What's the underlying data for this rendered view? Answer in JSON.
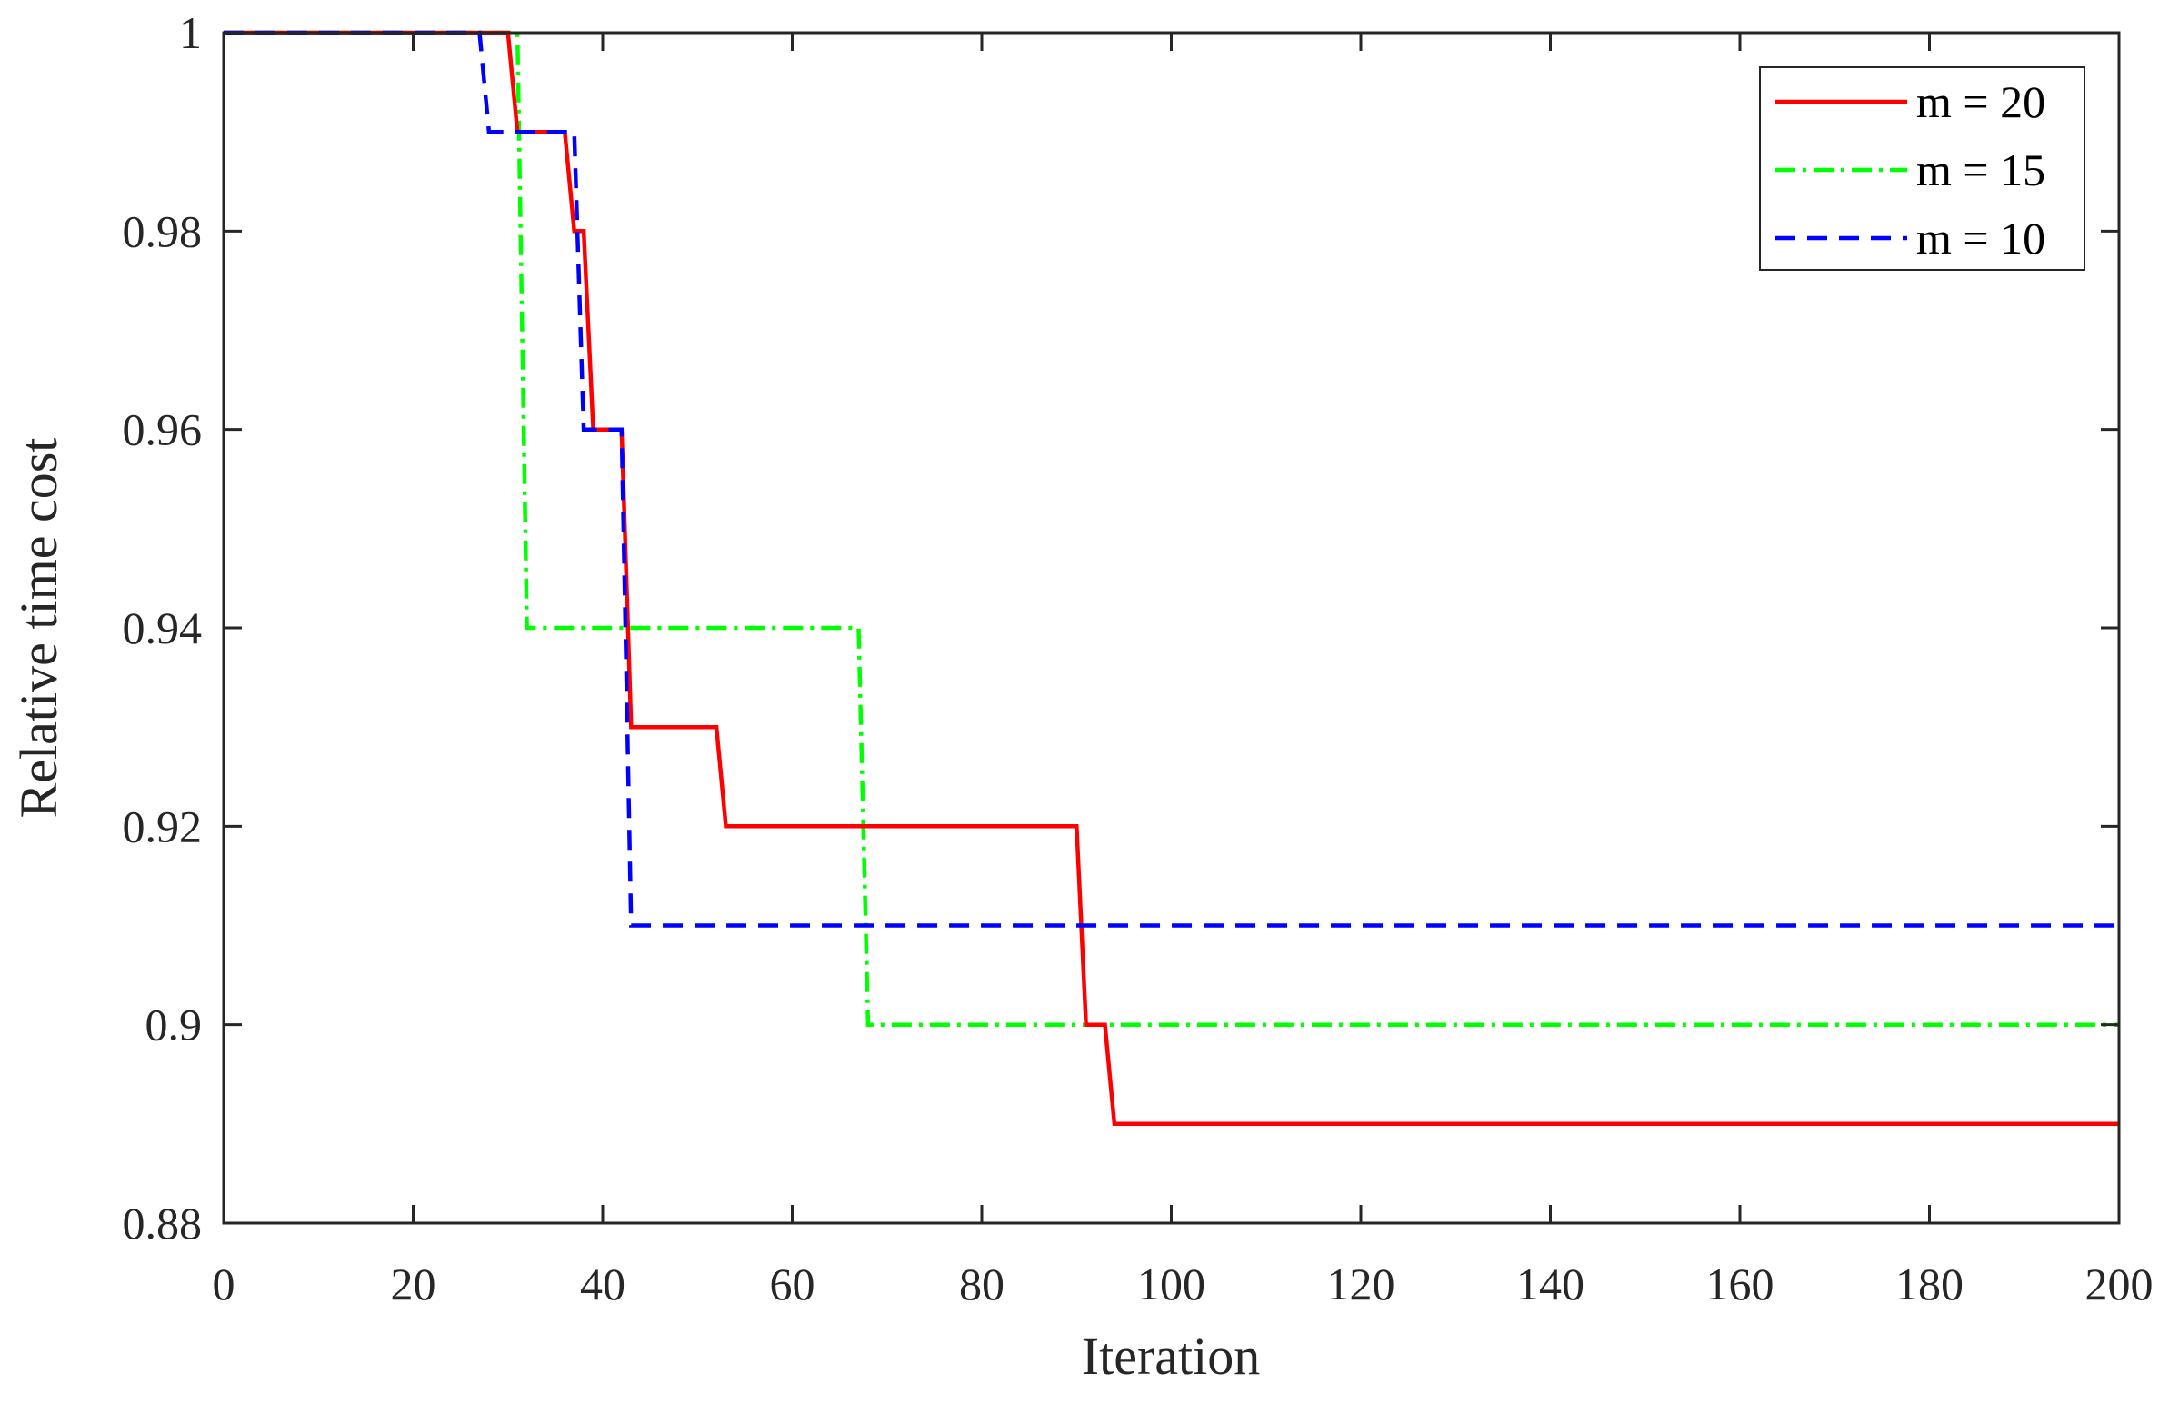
{
  "chart_data": {
    "type": "line",
    "title": "",
    "xlabel": "Iteration",
    "ylabel": "Relative time cost",
    "xlim": [
      0,
      200
    ],
    "ylim": [
      0.88,
      1.0
    ],
    "xticks": [
      0,
      20,
      40,
      60,
      80,
      100,
      120,
      140,
      160,
      180,
      200
    ],
    "xtick_labels": [
      "0",
      "20",
      "40",
      "60",
      "80",
      "100",
      "120",
      "140",
      "160",
      "180",
      "200"
    ],
    "yticks": [
      0.88,
      0.9,
      0.92,
      0.94,
      0.96,
      0.98,
      1.0
    ],
    "ytick_labels": [
      "0.88",
      "0.9",
      "0.92",
      "0.94",
      "0.96",
      "0.98",
      "1"
    ],
    "grid": false,
    "legend_position": "top-right",
    "series": [
      {
        "name": "m = 20",
        "color": "#ff0000",
        "style": "solid",
        "x": [
          0,
          30,
          31,
          36,
          37,
          38,
          39,
          42,
          43,
          52,
          53,
          90,
          91,
          93,
          94,
          200
        ],
        "y": [
          1.0,
          1.0,
          0.99,
          0.99,
          0.98,
          0.98,
          0.96,
          0.96,
          0.93,
          0.93,
          0.92,
          0.92,
          0.9,
          0.9,
          0.89,
          0.89
        ]
      },
      {
        "name": "m = 15",
        "color": "#00ff00",
        "style": "dashdot",
        "x": [
          0,
          31,
          32,
          67,
          68,
          200
        ],
        "y": [
          1.0,
          1.0,
          0.94,
          0.94,
          0.9,
          0.9
        ]
      },
      {
        "name": "m = 10",
        "color": "#0000ff",
        "style": "dashed",
        "x": [
          0,
          27,
          28,
          37,
          38,
          42,
          43,
          200
        ],
        "y": [
          1.0,
          1.0,
          0.99,
          0.99,
          0.96,
          0.96,
          0.91,
          0.91
        ]
      }
    ]
  }
}
